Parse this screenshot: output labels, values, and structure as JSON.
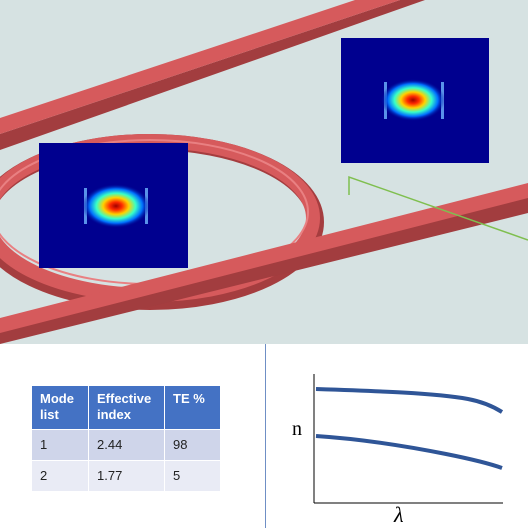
{
  "table": {
    "headers": [
      "Mode list",
      "Effective index",
      "TE %"
    ],
    "rows": [
      {
        "mode": "1",
        "index": "2.44",
        "te": "98"
      },
      {
        "mode": "2",
        "index": "1.77",
        "te": "5"
      }
    ]
  },
  "plot": {
    "ylabel": "n",
    "xlabel": "λ"
  },
  "colors": {
    "scene_background": "#d6e2e2",
    "waveguide": "#d65a5c",
    "mode_panel_background": "#00008f",
    "table_header": "#4472c4",
    "curve": "#2f5597"
  }
}
